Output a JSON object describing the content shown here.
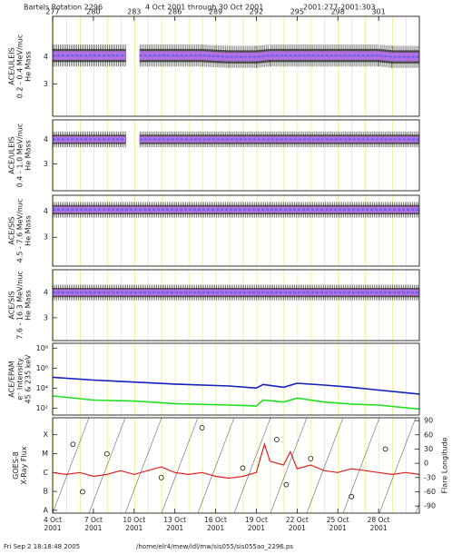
{
  "title": "Bartels Rotation 2296",
  "date_range": "4 Oct 2001 through 30 Oct 2001",
  "doy_range": "2001:277-2001:303",
  "footer_time": "Fri Sep  2 18:18:48 2005",
  "footer_path": "/home/elr4/mew/idl/mw/sis055/sis055ao_2296.ps",
  "chart_data": [
    {
      "type": "band",
      "ylabel": [
        "ACE/ULEIS",
        "0.2 - 0.4 MeV/nuc",
        "He Mass"
      ],
      "xlim": [
        277,
        304
      ],
      "xticks": [
        277,
        280,
        283,
        286,
        289,
        292,
        295,
        298,
        301
      ],
      "ylim": [
        1.8,
        5.5
      ],
      "yticks": [
        3,
        4
      ],
      "color": "#b070e0",
      "x": [
        277,
        278,
        279,
        280,
        281,
        282,
        282.4,
        283,
        283.4,
        284,
        285,
        286,
        287,
        288,
        289,
        290,
        291,
        292,
        293,
        294,
        295,
        296,
        297,
        298,
        299,
        300,
        301,
        302,
        303,
        304
      ],
      "values": [
        4.05,
        4.05,
        4.05,
        4.05,
        4.05,
        4.05,
        4.05,
        null,
        4.05,
        4.05,
        4.05,
        4.05,
        4.05,
        4.05,
        4.02,
        4.0,
        4.0,
        4.0,
        4.05,
        4.05,
        4.05,
        4.05,
        4.05,
        4.05,
        4.05,
        4.05,
        4.05,
        4.0,
        4.0,
        4.0
      ]
    },
    {
      "type": "band",
      "ylabel": [
        "ACE/ULEIS",
        "0.4 - 1.0 MeV/nuc",
        "He Mass"
      ],
      "xlim": [
        277,
        304
      ],
      "ylim": [
        1.9,
        4.8
      ],
      "yticks": [
        3,
        4
      ],
      "color": "#b070e0",
      "x": [
        277,
        278,
        279,
        280,
        281,
        282,
        282.4,
        283,
        283.4,
        284,
        285,
        286,
        287,
        288,
        289,
        290,
        291,
        292,
        293,
        294,
        295,
        296,
        297,
        298,
        299,
        300,
        301,
        302,
        303,
        304
      ],
      "values": [
        4.0,
        4.0,
        4.0,
        4.0,
        4.0,
        4.0,
        4.0,
        null,
        4.0,
        4.0,
        4.0,
        4.0,
        4.0,
        4.0,
        4.0,
        4.0,
        4.0,
        4.0,
        4.0,
        4.0,
        4.0,
        4.0,
        4.0,
        4.0,
        4.0,
        4.0,
        4.0,
        4.0,
        4.0,
        4.0
      ]
    },
    {
      "type": "band",
      "ylabel": [
        "ACE/SIS",
        "4.5 - 7.6 MeV/nuc",
        "He Mass"
      ],
      "xlim": [
        277,
        304
      ],
      "ylim": [
        1.9,
        4.6
      ],
      "yticks": [
        3,
        4
      ],
      "color": "#b070e0",
      "x": [
        277,
        280,
        283,
        286,
        289,
        292,
        295,
        298,
        301,
        304
      ],
      "values": [
        4.05,
        4.05,
        4.05,
        4.05,
        4.05,
        4.05,
        4.05,
        4.05,
        4.05,
        4.05
      ]
    },
    {
      "type": "band",
      "ylabel": [
        "ACE/SIS",
        "7.6 - 16.3 MeV/nuc",
        "He Mass"
      ],
      "xlim": [
        277,
        304
      ],
      "ylim": [
        2.1,
        4.9
      ],
      "yticks": [
        3,
        4
      ],
      "color": "#b070e0",
      "x": [
        277,
        280,
        283,
        286,
        289,
        292,
        295,
        298,
        301,
        304
      ],
      "values": [
        4.0,
        4.0,
        4.0,
        4.0,
        4.0,
        4.0,
        4.0,
        4.0,
        4.0,
        4.0
      ]
    },
    {
      "type": "line",
      "ylabel": [
        "ACE/EPAM",
        "e⁻ Intensity",
        "45 & 235 keV"
      ],
      "xlim": [
        277,
        304
      ],
      "log": true,
      "ylim": [
        20,
        300000000
      ],
      "yticks": [
        {
          "value": 100,
          "label": "10²"
        },
        {
          "value": 10000,
          "label": "10⁴"
        },
        {
          "value": 1000000,
          "label": "10⁶"
        },
        {
          "value": 100000000,
          "label": "10⁸"
        }
      ],
      "x": [
        277,
        280,
        283,
        286,
        290,
        292,
        292.5,
        294,
        295,
        297,
        299,
        301,
        304
      ],
      "series": [
        {
          "color": "#1020c0",
          "values": [
            120000,
            63000,
            40000,
            25000,
            16000,
            10000,
            23000,
            12000,
            30000,
            20000,
            12000,
            6300,
            2500
          ]
        },
        {
          "color": "#20e020",
          "values": [
            1600,
            630,
            500,
            280,
            200,
            160,
            630,
            400,
            1000,
            400,
            250,
            200,
            80
          ]
        }
      ]
    },
    {
      "type": "combo",
      "ylabel": [
        "GOES-8",
        "X-Ray Flux"
      ],
      "y2label": "Flare Longitude",
      "xlim": [
        277,
        304
      ],
      "xticks": [
        {
          "value": 277,
          "label": "4 Oct\n2001"
        },
        {
          "value": 280,
          "label": "7 Oct\n2001"
        },
        {
          "value": 283,
          "label": "10 Oct\n2001"
        },
        {
          "value": 286,
          "label": "13 Oct\n2001"
        },
        {
          "value": 289,
          "label": "16 Oct\n2001"
        },
        {
          "value": 292,
          "label": "19 Oct\n2001"
        },
        {
          "value": 295,
          "label": "22 Oct\n2001"
        },
        {
          "value": 298,
          "label": "25 Oct\n2001"
        },
        {
          "value": 301,
          "label": "28 Oct\n2001"
        }
      ],
      "ylim": [
        -8.15,
        -3.1
      ],
      "yticks": [
        {
          "value": -8,
          "label": "A"
        },
        {
          "value": -7,
          "label": "B"
        },
        {
          "value": -6,
          "label": "C"
        },
        {
          "value": -5,
          "label": "M"
        },
        {
          "value": -4,
          "label": "X"
        }
      ],
      "y2lim": [
        -105,
        96
      ],
      "y2ticks": [
        -90,
        -60,
        -30,
        0,
        30,
        60,
        90
      ],
      "series": [
        {
          "type": "line",
          "color": "#e02020",
          "x": [
            277,
            278,
            279,
            280,
            281,
            282,
            283,
            284,
            285,
            286,
            287,
            288,
            289,
            290,
            291,
            292,
            292.6,
            293,
            294,
            294.5,
            295,
            296,
            297,
            298,
            299,
            300,
            301,
            302,
            303,
            304
          ],
          "values": [
            -6.0,
            -6.1,
            -6.0,
            -6.2,
            -6.1,
            -5.9,
            -6.1,
            -5.9,
            -5.7,
            -6.0,
            -6.1,
            -6.0,
            -6.2,
            -6.3,
            -6.2,
            -6.0,
            -4.5,
            -5.4,
            -5.6,
            -4.9,
            -5.8,
            -5.6,
            -5.9,
            -6.0,
            -5.8,
            -5.9,
            -6.0,
            -6.1,
            -6.0,
            -6.1
          ]
        },
        {
          "type": "scatter",
          "axis": "y2",
          "x": [
            278.5,
            279.2,
            281,
            285,
            288,
            291,
            293.5,
            294.2,
            296,
            299,
            301.5
          ],
          "values": [
            40,
            -60,
            20,
            -30,
            75,
            -10,
            50,
            -45,
            10,
            -70,
            30
          ]
        }
      ]
    }
  ]
}
